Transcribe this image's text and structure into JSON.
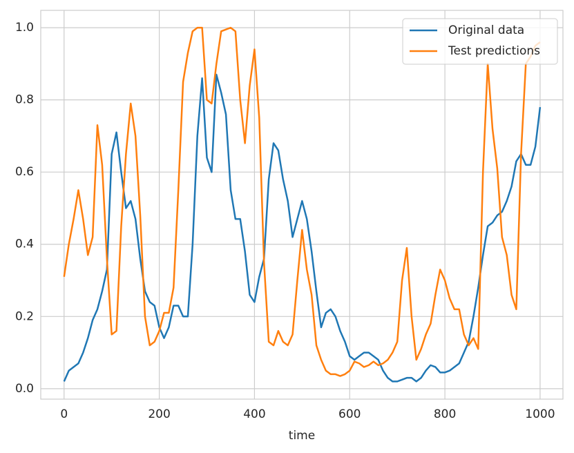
{
  "chart_data": {
    "type": "line",
    "xlabel": "time",
    "x": [
      0,
      10,
      20,
      30,
      40,
      50,
      60,
      70,
      80,
      90,
      100,
      110,
      120,
      130,
      140,
      150,
      160,
      170,
      180,
      190,
      200,
      210,
      220,
      230,
      240,
      250,
      260,
      270,
      280,
      290,
      300,
      310,
      320,
      330,
      340,
      350,
      360,
      370,
      380,
      390,
      400,
      410,
      420,
      430,
      440,
      450,
      460,
      470,
      480,
      490,
      500,
      510,
      520,
      530,
      540,
      550,
      560,
      570,
      580,
      590,
      600,
      610,
      620,
      630,
      640,
      650,
      660,
      670,
      680,
      690,
      700,
      710,
      720,
      730,
      740,
      750,
      760,
      770,
      780,
      790,
      800,
      810,
      820,
      830,
      840,
      850,
      860,
      870,
      880,
      890,
      900,
      910,
      920,
      930,
      940,
      950,
      960,
      970,
      980,
      990,
      1000
    ],
    "series": [
      {
        "name": "Original data",
        "color": "#1f77b4",
        "values": [
          0.02,
          0.05,
          0.06,
          0.07,
          0.1,
          0.14,
          0.19,
          0.22,
          0.27,
          0.33,
          0.65,
          0.71,
          0.6,
          0.5,
          0.52,
          0.47,
          0.36,
          0.27,
          0.24,
          0.23,
          0.17,
          0.14,
          0.17,
          0.23,
          0.23,
          0.2,
          0.2,
          0.4,
          0.7,
          0.86,
          0.64,
          0.6,
          0.87,
          0.82,
          0.76,
          0.55,
          0.47,
          0.47,
          0.38,
          0.26,
          0.24,
          0.31,
          0.36,
          0.58,
          0.68,
          0.66,
          0.58,
          0.52,
          0.42,
          0.47,
          0.52,
          0.47,
          0.38,
          0.27,
          0.17,
          0.21,
          0.22,
          0.2,
          0.16,
          0.13,
          0.09,
          0.08,
          0.09,
          0.1,
          0.1,
          0.09,
          0.08,
          0.05,
          0.03,
          0.02,
          0.02,
          0.025,
          0.03,
          0.03,
          0.02,
          0.03,
          0.05,
          0.065,
          0.06,
          0.045,
          0.045,
          0.05,
          0.06,
          0.07,
          0.1,
          0.13,
          0.2,
          0.28,
          0.37,
          0.45,
          0.46,
          0.48,
          0.49,
          0.52,
          0.56,
          0.63,
          0.65,
          0.62,
          0.62,
          0.67,
          0.78
        ]
      },
      {
        "name": "Test predictions",
        "color": "#ff7f0e",
        "values": [
          0.31,
          0.4,
          0.47,
          0.55,
          0.47,
          0.37,
          0.42,
          0.73,
          0.62,
          0.36,
          0.15,
          0.16,
          0.45,
          0.65,
          0.79,
          0.7,
          0.48,
          0.2,
          0.12,
          0.13,
          0.16,
          0.21,
          0.21,
          0.28,
          0.55,
          0.85,
          0.93,
          0.99,
          1.0,
          1.0,
          0.8,
          0.79,
          0.9,
          0.99,
          0.995,
          1.0,
          0.99,
          0.8,
          0.68,
          0.84,
          0.94,
          0.75,
          0.35,
          0.13,
          0.12,
          0.16,
          0.13,
          0.12,
          0.15,
          0.3,
          0.44,
          0.33,
          0.26,
          0.12,
          0.08,
          0.05,
          0.04,
          0.04,
          0.035,
          0.04,
          0.05,
          0.075,
          0.07,
          0.06,
          0.065,
          0.075,
          0.065,
          0.07,
          0.08,
          0.1,
          0.13,
          0.3,
          0.39,
          0.2,
          0.08,
          0.11,
          0.15,
          0.18,
          0.26,
          0.33,
          0.3,
          0.25,
          0.22,
          0.22,
          0.15,
          0.12,
          0.14,
          0.11,
          0.6,
          0.9,
          0.72,
          0.61,
          0.42,
          0.37,
          0.26,
          0.22,
          0.65,
          0.9,
          0.92,
          0.95,
          0.96
        ]
      }
    ],
    "xlim": [
      -49,
      1048
    ],
    "xticks": [
      0,
      200,
      400,
      600,
      800,
      1000
    ],
    "ylim": [
      -0.029,
      1.048
    ],
    "yticks": [
      {
        "value": 0,
        "label": "0.0"
      },
      0.2,
      0.4,
      0.6,
      0.8,
      {
        "value": 1,
        "label": "1.0"
      }
    ],
    "grid": true,
    "legend": "upper right"
  }
}
